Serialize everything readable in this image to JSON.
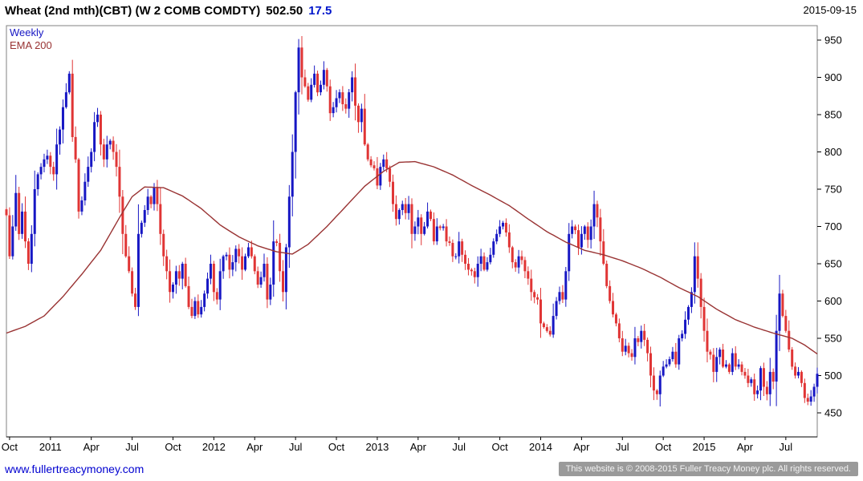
{
  "header": {
    "title": "Wheat (2nd mth)(CBT) (W 2 COMB COMDTY)",
    "last_price": "502.50",
    "change": "17.5",
    "date": "2015-09-15"
  },
  "legend": {
    "series": "Weekly",
    "overlay": "EMA 200"
  },
  "footer": {
    "site_link": "www.fullertreacymoney.com",
    "copyright": "This website is © 2008-2015 Fuller Treacy Money plc. All rights reserved."
  },
  "colors": {
    "up": "#1717c4",
    "down": "#e03535",
    "ema": "#993333",
    "change_text": "#0017cc",
    "link": "#0000d0",
    "axis": "#000000",
    "frame": "#808080"
  },
  "chart_data": {
    "type": "candlestick",
    "timeframe": "weekly",
    "title": "Wheat (2nd mth)(CBT) (W 2 COMB COMDTY)",
    "last_close": 502.5,
    "change": 17.5,
    "as_of": "2015-09-15",
    "overlay": "EMA 200",
    "grid": false,
    "legend_position": "top-left",
    "y_axis_side": "right",
    "ylim": [
      440,
      960
    ],
    "y_ticks": [
      950,
      900,
      850,
      800,
      750,
      700,
      650,
      600,
      550,
      500,
      450
    ],
    "x_ticks": [
      {
        "label": "Oct",
        "week": 1
      },
      {
        "label": "2011",
        "week": 14
      },
      {
        "label": "Apr",
        "week": 27
      },
      {
        "label": "Jul",
        "week": 40
      },
      {
        "label": "Oct",
        "week": 53
      },
      {
        "label": "2012",
        "week": 66
      },
      {
        "label": "Apr",
        "week": 79
      },
      {
        "label": "Jul",
        "week": 92
      },
      {
        "label": "Oct",
        "week": 105
      },
      {
        "label": "2013",
        "week": 118
      },
      {
        "label": "Apr",
        "week": 131
      },
      {
        "label": "Jul",
        "week": 144
      },
      {
        "label": "Oct",
        "week": 157
      },
      {
        "label": "2014",
        "week": 170
      },
      {
        "label": "Apr",
        "week": 183
      },
      {
        "label": "Jul",
        "week": 196
      },
      {
        "label": "Oct",
        "week": 209
      },
      {
        "label": "2015",
        "week": 222
      },
      {
        "label": "Apr",
        "week": 235
      },
      {
        "label": "Jul",
        "week": 248
      }
    ],
    "closes": [
      715,
      660,
      700,
      745,
      690,
      720,
      680,
      650,
      690,
      750,
      770,
      780,
      790,
      795,
      780,
      770,
      810,
      830,
      860,
      880,
      905,
      820,
      790,
      720,
      735,
      760,
      780,
      800,
      840,
      850,
      810,
      790,
      810,
      815,
      800,
      780,
      740,
      690,
      660,
      640,
      610,
      592,
      690,
      705,
      722,
      740,
      730,
      752,
      730,
      690,
      660,
      640,
      612,
      622,
      640,
      630,
      650,
      620,
      592,
      580,
      600,
      582,
      592,
      610,
      630,
      650,
      612,
      602,
      640,
      660,
      662,
      642,
      652,
      670,
      660,
      642,
      660,
      672,
      660,
      640,
      622,
      632,
      650,
      602,
      622,
      680,
      678,
      640,
      612,
      672,
      740,
      800,
      880,
      940,
      900,
      888,
      870,
      890,
      905,
      880,
      890,
      910,
      888,
      852,
      860,
      872,
      880,
      864,
      858,
      880,
      900,
      862,
      840,
      858,
      810,
      790,
      782,
      778,
      755,
      780,
      790,
      778,
      760,
      730,
      710,
      722,
      730,
      718,
      730,
      690,
      700,
      712,
      690,
      700,
      720,
      710,
      680,
      700,
      698,
      700,
      680,
      678,
      660,
      660,
      680,
      662,
      650,
      642,
      640,
      632,
      650,
      660,
      642,
      652,
      662,
      680,
      690,
      700,
      705,
      692,
      672,
      652,
      645,
      660,
      655,
      640,
      630,
      612,
      605,
      602,
      570,
      565,
      560,
      555,
      580,
      600,
      612,
      602,
      640,
      690,
      700,
      695,
      672,
      690,
      700,
      682,
      700,
      730,
      712,
      680,
      650,
      620,
      600,
      582,
      570,
      550,
      532,
      540,
      530,
      525,
      550,
      545,
      560,
      548,
      530,
      500,
      480,
      475,
      500,
      512,
      515,
      522,
      532,
      515,
      550,
      556,
      575,
      592,
      612,
      660,
      630,
      592,
      560,
      532,
      528,
      505,
      525,
      535,
      512,
      515,
      505,
      530,
      512,
      515,
      505,
      500,
      490,
      495,
      475,
      480,
      510,
      485,
      475,
      505,
      492,
      560,
      610,
      580,
      560,
      535,
      512,
      500,
      505,
      490,
      470,
      465,
      472,
      485,
      502.5
    ],
    "ema_anchors": [
      [
        0,
        557
      ],
      [
        6,
        566
      ],
      [
        12,
        580
      ],
      [
        18,
        606
      ],
      [
        24,
        636
      ],
      [
        30,
        668
      ],
      [
        36,
        712
      ],
      [
        40,
        740
      ],
      [
        44,
        753
      ],
      [
        50,
        752
      ],
      [
        56,
        741
      ],
      [
        62,
        724
      ],
      [
        68,
        702
      ],
      [
        74,
        686
      ],
      [
        80,
        674
      ],
      [
        86,
        666
      ],
      [
        91,
        663
      ],
      [
        96,
        676
      ],
      [
        102,
        700
      ],
      [
        108,
        727
      ],
      [
        114,
        754
      ],
      [
        120,
        774
      ],
      [
        125,
        786
      ],
      [
        130,
        787
      ],
      [
        136,
        780
      ],
      [
        142,
        769
      ],
      [
        148,
        755
      ],
      [
        154,
        742
      ],
      [
        160,
        728
      ],
      [
        166,
        710
      ],
      [
        172,
        693
      ],
      [
        178,
        679
      ],
      [
        184,
        668
      ],
      [
        190,
        662
      ],
      [
        196,
        654
      ],
      [
        202,
        644
      ],
      [
        208,
        632
      ],
      [
        214,
        618
      ],
      [
        220,
        606
      ],
      [
        226,
        589
      ],
      [
        232,
        575
      ],
      [
        238,
        565
      ],
      [
        244,
        557
      ],
      [
        250,
        550
      ],
      [
        254,
        541
      ],
      [
        258,
        529
      ]
    ]
  }
}
